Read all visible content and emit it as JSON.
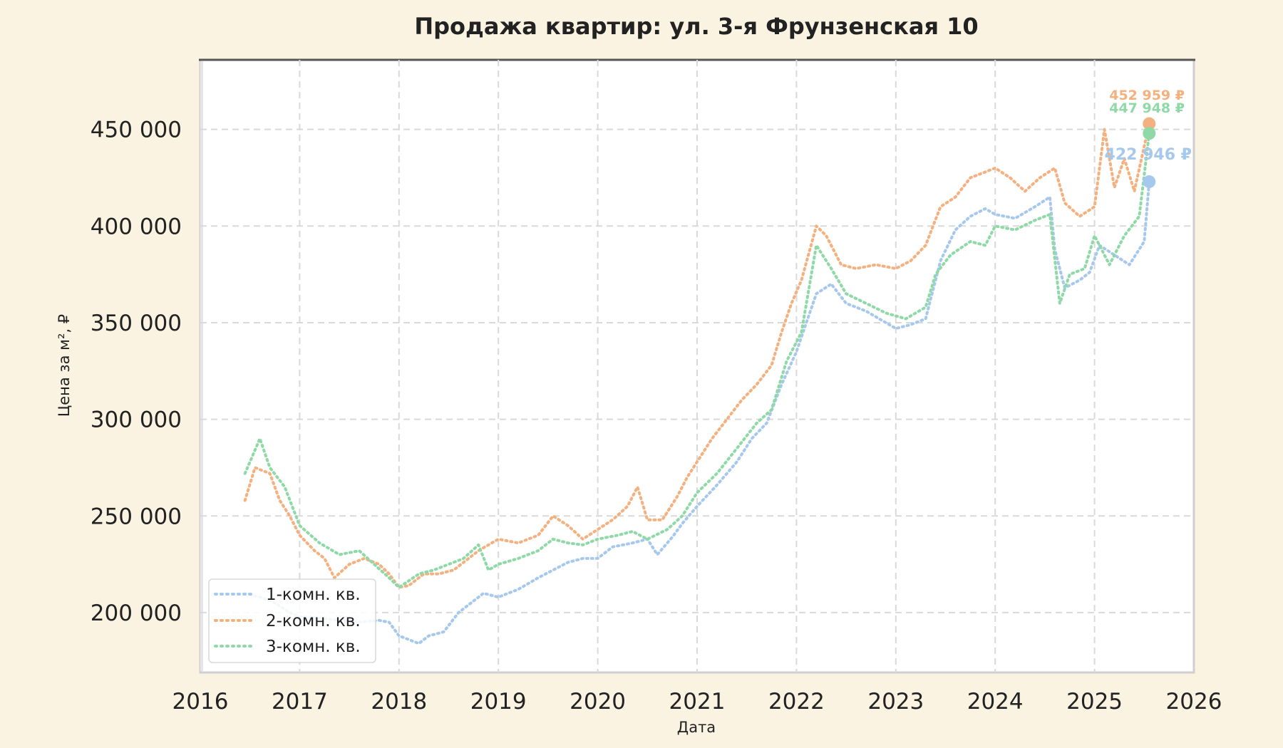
{
  "chart_data": {
    "type": "line",
    "title": "Продажа квартир: ул. 3-я Фрунзенская 10",
    "xlabel": "Дата",
    "ylabel": "Цена за м², ₽",
    "xlim": [
      2016,
      2026
    ],
    "ylim": [
      169000,
      486000
    ],
    "x_ticks": [
      "2016",
      "2017",
      "2018",
      "2019",
      "2020",
      "2021",
      "2022",
      "2023",
      "2024",
      "2025",
      "2026"
    ],
    "y_ticks": [
      {
        "value": 200000,
        "label": "200 000"
      },
      {
        "value": 250000,
        "label": "250 000"
      },
      {
        "value": 300000,
        "label": "300 000"
      },
      {
        "value": 350000,
        "label": "350 000"
      },
      {
        "value": 400000,
        "label": "400 000"
      },
      {
        "value": 450000,
        "label": "450 000"
      }
    ],
    "grid": true,
    "legend_position": "bottom-left",
    "series": [
      {
        "name": "1-комн. кв.",
        "color": "#a6c8ec",
        "x": [
          2016.45,
          2016.6,
          2016.75,
          2016.9,
          2017.0,
          2017.2,
          2017.4,
          2017.6,
          2017.8,
          2017.9,
          2018.0,
          2018.1,
          2018.2,
          2018.3,
          2018.45,
          2018.6,
          2018.75,
          2018.85,
          2019.0,
          2019.2,
          2019.4,
          2019.55,
          2019.7,
          2019.85,
          2020.0,
          2020.15,
          2020.35,
          2020.5,
          2020.6,
          2020.75,
          2020.85,
          2021.0,
          2021.2,
          2021.4,
          2021.55,
          2021.7,
          2021.85,
          2022.0,
          2022.1,
          2022.2,
          2022.35,
          2022.5,
          2022.7,
          2022.9,
          2023.0,
          2023.15,
          2023.3,
          2023.45,
          2023.6,
          2023.75,
          2023.9,
          2024.0,
          2024.2,
          2024.4,
          2024.55,
          2024.6,
          2024.7,
          2024.85,
          2024.95,
          2025.05,
          2025.2,
          2025.35,
          2025.5,
          2025.55
        ],
        "y": [
          210000,
          208000,
          205000,
          200000,
          198000,
          197000,
          196000,
          195000,
          196000,
          195000,
          188000,
          186000,
          184000,
          188000,
          190000,
          200000,
          206000,
          210000,
          208000,
          212000,
          218000,
          222000,
          226000,
          228000,
          228000,
          234000,
          236000,
          238000,
          230000,
          239000,
          246000,
          255000,
          266000,
          278000,
          290000,
          298000,
          318000,
          335000,
          350000,
          365000,
          370000,
          360000,
          356000,
          350000,
          347000,
          349000,
          352000,
          382000,
          398000,
          405000,
          409000,
          406000,
          404000,
          410000,
          415000,
          388000,
          368000,
          372000,
          376000,
          390000,
          385000,
          380000,
          392000,
          422946
        ]
      },
      {
        "name": "2-комн. кв.",
        "color": "#f4b07e",
        "x": [
          2016.45,
          2016.55,
          2016.7,
          2016.8,
          2016.9,
          2017.0,
          2017.15,
          2017.25,
          2017.35,
          2017.5,
          2017.65,
          2017.8,
          2017.9,
          2018.0,
          2018.1,
          2018.25,
          2018.4,
          2018.55,
          2018.7,
          2018.8,
          2018.9,
          2019.0,
          2019.2,
          2019.4,
          2019.55,
          2019.7,
          2019.85,
          2020.0,
          2020.15,
          2020.3,
          2020.4,
          2020.5,
          2020.65,
          2020.8,
          2020.9,
          2021.0,
          2021.15,
          2021.3,
          2021.45,
          2021.6,
          2021.75,
          2021.85,
          2021.95,
          2022.05,
          2022.2,
          2022.3,
          2022.45,
          2022.6,
          2022.8,
          2023.0,
          2023.15,
          2023.3,
          2023.45,
          2023.6,
          2023.75,
          2023.9,
          2024.0,
          2024.15,
          2024.3,
          2024.45,
          2024.6,
          2024.7,
          2024.85,
          2025.0,
          2025.1,
          2025.2,
          2025.3,
          2025.4,
          2025.55
        ],
        "y": [
          258000,
          275000,
          272000,
          258000,
          250000,
          240000,
          232000,
          228000,
          218000,
          225000,
          228000,
          225000,
          220000,
          213000,
          214000,
          220000,
          220000,
          222000,
          228000,
          232000,
          235000,
          238000,
          236000,
          240000,
          250000,
          245000,
          238000,
          243000,
          248000,
          255000,
          265000,
          248000,
          248000,
          260000,
          270000,
          278000,
          290000,
          300000,
          310000,
          318000,
          328000,
          345000,
          360000,
          372000,
          400000,
          395000,
          380000,
          378000,
          380000,
          378000,
          382000,
          390000,
          410000,
          415000,
          425000,
          428000,
          430000,
          425000,
          418000,
          425000,
          430000,
          412000,
          405000,
          410000,
          450000,
          420000,
          435000,
          418000,
          452959
        ]
      },
      {
        "name": "3-комн. кв.",
        "color": "#8ed9a6",
        "x": [
          2016.45,
          2016.6,
          2016.7,
          2016.85,
          2017.0,
          2017.2,
          2017.4,
          2017.6,
          2017.75,
          2017.9,
          2018.0,
          2018.2,
          2018.35,
          2018.5,
          2018.65,
          2018.8,
          2018.9,
          2019.0,
          2019.2,
          2019.4,
          2019.55,
          2019.7,
          2019.85,
          2020.0,
          2020.2,
          2020.35,
          2020.5,
          2020.7,
          2020.85,
          2021.0,
          2021.2,
          2021.4,
          2021.6,
          2021.75,
          2021.9,
          2022.05,
          2022.2,
          2022.35,
          2022.5,
          2022.7,
          2022.9,
          2023.1,
          2023.3,
          2023.4,
          2023.55,
          2023.75,
          2023.9,
          2024.0,
          2024.2,
          2024.4,
          2024.55,
          2024.65,
          2024.75,
          2024.9,
          2025.0,
          2025.15,
          2025.3,
          2025.45,
          2025.55
        ],
        "y": [
          272000,
          290000,
          275000,
          265000,
          245000,
          236000,
          230000,
          232000,
          225000,
          218000,
          213000,
          220000,
          222000,
          225000,
          228000,
          235000,
          222000,
          225000,
          228000,
          232000,
          238000,
          236000,
          235000,
          238000,
          240000,
          242000,
          238000,
          243000,
          250000,
          262000,
          272000,
          285000,
          298000,
          305000,
          330000,
          345000,
          390000,
          378000,
          365000,
          360000,
          355000,
          352000,
          358000,
          375000,
          385000,
          392000,
          390000,
          400000,
          398000,
          403000,
          406000,
          360000,
          375000,
          378000,
          395000,
          380000,
          395000,
          405000,
          447948
        ]
      }
    ],
    "end_points": [
      {
        "series": "2-комн. кв.",
        "x": 2025.55,
        "y": 452959,
        "label": "452 959 ₽",
        "color": "#f4b07e"
      },
      {
        "series": "3-комн. кв.",
        "x": 2025.55,
        "y": 447948,
        "label": "447 948 ₽",
        "color": "#8ed9a6"
      },
      {
        "series": "1-комн. кв.",
        "x": 2025.55,
        "y": 422946,
        "label": "422 946 ₽",
        "color": "#a6c8ec"
      }
    ]
  }
}
